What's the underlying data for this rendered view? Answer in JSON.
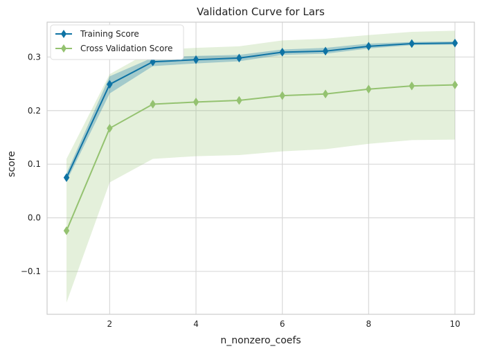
{
  "chart_data": {
    "type": "line",
    "title": "Validation Curve for Lars",
    "xlabel": "n_nonzero_coefs",
    "ylabel": "score",
    "x": [
      1,
      2,
      3,
      4,
      5,
      6,
      7,
      8,
      9,
      10
    ],
    "xlim": [
      0.55,
      10.45
    ],
    "ylim": [
      -0.18,
      0.365
    ],
    "xticks": [
      2,
      4,
      6,
      8,
      10
    ],
    "yticks": [
      -0.1,
      0.0,
      0.1,
      0.2,
      0.3
    ],
    "ytick_labels": [
      "−0.1",
      "0.0",
      "0.1",
      "0.2",
      "0.3"
    ],
    "grid": true,
    "legend_position": "top-left",
    "series": [
      {
        "name": "Training Score",
        "color": "#0e73a4",
        "marker": "diamond",
        "values": [
          0.075,
          0.249,
          0.291,
          0.295,
          0.298,
          0.309,
          0.311,
          0.32,
          0.325,
          0.326
        ],
        "band_lower": [
          0.068,
          0.232,
          0.283,
          0.288,
          0.292,
          0.304,
          0.306,
          0.316,
          0.322,
          0.323
        ],
        "band_upper": [
          0.083,
          0.264,
          0.299,
          0.302,
          0.304,
          0.314,
          0.317,
          0.325,
          0.328,
          0.329
        ]
      },
      {
        "name": "Cross Validation Score",
        "color": "#94c270",
        "marker": "diamond",
        "values": [
          -0.024,
          0.167,
          0.212,
          0.216,
          0.219,
          0.228,
          0.231,
          0.24,
          0.246,
          0.248
        ],
        "band_lower": [
          -0.158,
          0.066,
          0.11,
          0.115,
          0.117,
          0.124,
          0.128,
          0.138,
          0.145,
          0.146
        ],
        "band_upper": [
          0.11,
          0.268,
          0.313,
          0.317,
          0.32,
          0.331,
          0.334,
          0.341,
          0.347,
          0.349
        ]
      }
    ]
  }
}
